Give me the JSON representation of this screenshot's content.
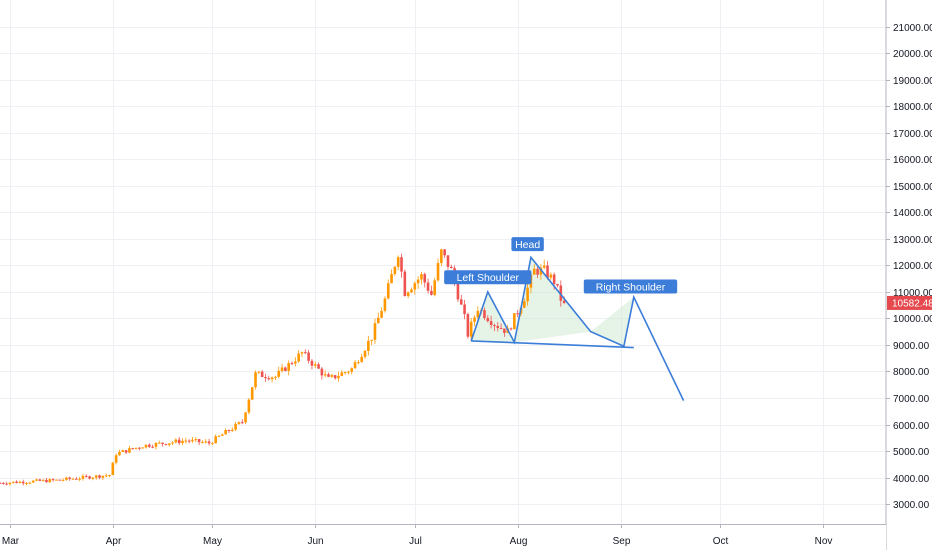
{
  "chart_data": {
    "type": "candlestick",
    "y_ticks": [
      3000,
      4000,
      5000,
      6000,
      7000,
      8000,
      9000,
      10000,
      11000,
      12000,
      13000,
      14000,
      15000,
      16000,
      17000,
      18000,
      19000,
      20000,
      21000
    ],
    "y_tick_labels": [
      "3000.00",
      "4000.00",
      "5000.00",
      "6000.00",
      "7000.00",
      "8000.00",
      "9000.00",
      "10000.00",
      "11000.00",
      "12000.00",
      "13000.00",
      "14000.00",
      "15000.00",
      "16000.00",
      "17000.00",
      "18000.00",
      "19000.00",
      "20000.00",
      "21000.00"
    ],
    "ylim": [
      2250,
      22000
    ],
    "x_range": [
      "2019-02-26",
      "2019-11-20"
    ],
    "x_ticks": [
      {
        "date": "2019-03-01",
        "label": "Mar"
      },
      {
        "date": "2019-04-01",
        "label": "Apr"
      },
      {
        "date": "2019-05-01",
        "label": "May"
      },
      {
        "date": "2019-06-01",
        "label": "Jun"
      },
      {
        "date": "2019-07-01",
        "label": "Jul"
      },
      {
        "date": "2019-08-01",
        "label": "Aug"
      },
      {
        "date": "2019-09-01",
        "label": "Sep"
      },
      {
        "date": "2019-10-01",
        "label": "Oct"
      },
      {
        "date": "2019-11-01",
        "label": "Nov"
      }
    ],
    "price_path": [
      [
        "2019-02-26",
        3800
      ],
      [
        "2019-03-15",
        3900
      ],
      [
        "2019-03-31",
        4100
      ],
      [
        "2019-04-02",
        4900
      ],
      [
        "2019-04-10",
        5200
      ],
      [
        "2019-04-23",
        5400
      ],
      [
        "2019-04-30",
        5300
      ],
      [
        "2019-05-10",
        6100
      ],
      [
        "2019-05-14",
        7900
      ],
      [
        "2019-05-20",
        7800
      ],
      [
        "2019-05-28",
        8700
      ],
      [
        "2019-06-05",
        7700
      ],
      [
        "2019-06-12",
        8100
      ],
      [
        "2019-06-18",
        9300
      ],
      [
        "2019-06-22",
        10700
      ],
      [
        "2019-06-26",
        12500
      ],
      [
        "2019-06-28",
        11000
      ],
      [
        "2019-07-03",
        11600
      ],
      [
        "2019-07-06",
        10900
      ],
      [
        "2019-07-09",
        12500
      ],
      [
        "2019-07-12",
        11800
      ],
      [
        "2019-07-16",
        10000
      ],
      [
        "2019-07-17",
        9400
      ],
      [
        "2019-07-20",
        10400
      ],
      [
        "2019-07-25",
        9800
      ],
      [
        "2019-07-29",
        9500
      ],
      [
        "2019-08-03",
        10800
      ],
      [
        "2019-08-06",
        11800
      ],
      [
        "2019-08-09",
        11800
      ],
      [
        "2019-08-12",
        11400
      ],
      [
        "2019-08-15",
        10400
      ]
    ],
    "candle_up_color": "#ff9800",
    "candle_down_color": "#ef5350",
    "last_price": 10582.48,
    "last_price_label": "10582.48",
    "last_price_color": "#e5484d",
    "pattern": {
      "color": "#2962ff",
      "line_color": "#3b7dd8",
      "fill_color": "#c8e6c9",
      "path": [
        [
          "2019-07-18",
          9150
        ],
        [
          "2019-07-23",
          11000
        ],
        [
          "2019-07-31",
          9100
        ],
        [
          "2019-08-05",
          12300
        ],
        [
          "2019-08-23",
          9500
        ],
        [
          "2019-09-02",
          8950
        ],
        [
          "2019-09-05",
          10800
        ],
        [
          "2019-09-20",
          6900
        ]
      ],
      "neckline": [
        [
          "2019-07-18",
          9150
        ],
        [
          "2019-09-15",
          8850
        ]
      ],
      "labels": [
        {
          "text": "Left Shoulder",
          "date": "2019-07-23",
          "price": 11550
        },
        {
          "text": "Head",
          "date": "2019-08-04",
          "price": 12800
        },
        {
          "text": "Right Shoulder",
          "date": "2019-09-04",
          "price": 11200
        }
      ]
    }
  }
}
